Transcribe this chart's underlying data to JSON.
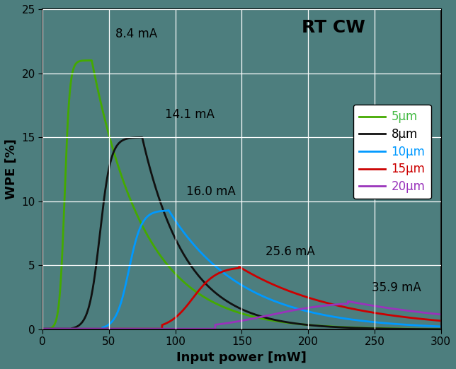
{
  "title": "RT CW",
  "xlabel": "Input power [mW]",
  "ylabel": "WPE [%]",
  "xlim": [
    0,
    300
  ],
  "ylim": [
    0,
    25
  ],
  "xticks": [
    0,
    50,
    100,
    150,
    200,
    250,
    300
  ],
  "yticks": [
    0,
    5,
    10,
    15,
    20,
    25
  ],
  "background_color": "#4d7e7e",
  "plot_bg_color": "#4d7e7e",
  "grid_color": "white",
  "series": [
    {
      "label": "5μm",
      "label_color": "#44bb44",
      "color": "#44aa00",
      "peak_x": 37,
      "peak_y": 21.0,
      "rise_start": 3,
      "rise_k": 0.22,
      "fall_k": 0.025,
      "annotation": "8.4 mA",
      "ann_x": 55,
      "ann_y": 22.8
    },
    {
      "label": "8μm",
      "label_color": "#000000",
      "color": "#111111",
      "peak_x": 75,
      "peak_y": 15.0,
      "rise_start": 22,
      "rise_k": 0.16,
      "fall_k": 0.03,
      "annotation": "14.1 mA",
      "ann_x": 92,
      "ann_y": 16.5
    },
    {
      "label": "10μm",
      "label_color": "#0099ff",
      "color": "#0099ff",
      "peak_x": 95,
      "peak_y": 9.3,
      "rise_start": 45,
      "rise_k": 0.13,
      "fall_k": 0.018,
      "annotation": "16.0 mA",
      "ann_x": 108,
      "ann_y": 10.5
    },
    {
      "label": "15μm",
      "label_color": "#cc0000",
      "color": "#cc0000",
      "peak_x": 148,
      "peak_y": 4.9,
      "rise_start": 90,
      "rise_k": 0.08,
      "fall_k": 0.013,
      "annotation": "25.6 mA",
      "ann_x": 168,
      "ann_y": 5.8
    },
    {
      "label": "20μm",
      "label_color": "#9933bb",
      "color": "#9933bb",
      "peak_x": 230,
      "peak_y": 2.2,
      "rise_start": 130,
      "rise_k": 0.05,
      "fall_k": 0.009,
      "annotation": "35.9 mA",
      "ann_x": 248,
      "ann_y": 3.0
    }
  ]
}
